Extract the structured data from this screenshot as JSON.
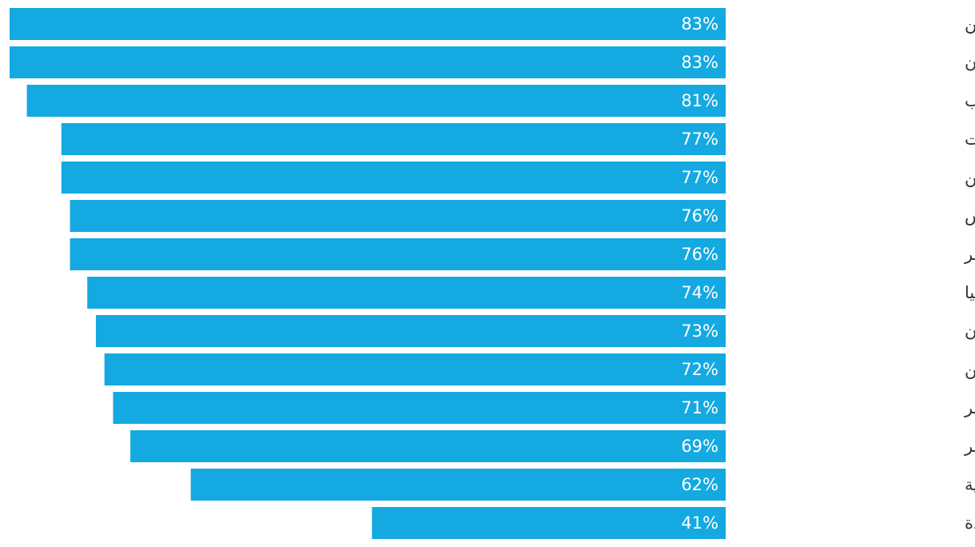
{
  "chart_data": {
    "type": "bar",
    "orientation": "horizontal",
    "categories": [
      "البحرين",
      "عمان",
      "المغرب",
      "الكويت",
      "فلسطين",
      "تونس",
      "مصر",
      "ليبيا",
      "لبنان",
      "اليمن",
      "الجزائر",
      "قطر",
      "المملكة العربية السعودية",
      "دولة الإمارات العربية المتحدة"
    ],
    "values": [
      83,
      83,
      81,
      77,
      77,
      76,
      76,
      74,
      73,
      72,
      71,
      69,
      62,
      41
    ],
    "value_labels": [
      "83%",
      "83%",
      "81%",
      "77%",
      "77%",
      "76%",
      "76%",
      "74%",
      "73%",
      "72%",
      "71%",
      "69%",
      "62%",
      "41%"
    ],
    "xlim": [
      0,
      83
    ],
    "bar_direction": "right-to-left",
    "grid": false,
    "legend": "none",
    "colors": {
      "bar": "#14a9e1",
      "value_text": "#ffffff",
      "label_text": "#333333"
    }
  }
}
